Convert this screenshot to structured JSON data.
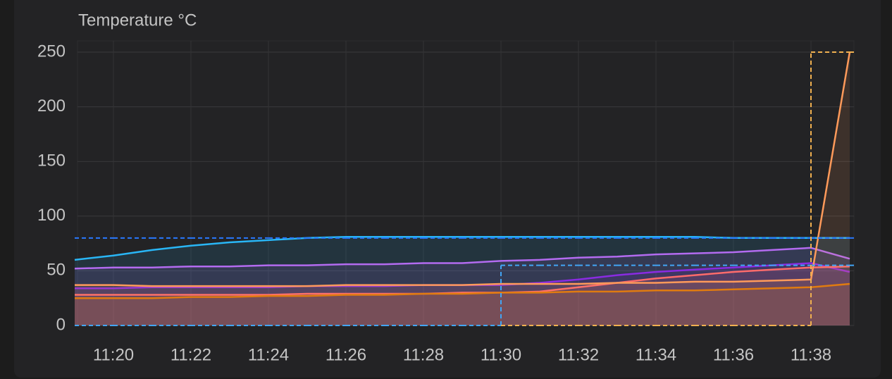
{
  "chart_data": {
    "type": "line",
    "title": "Temperature °C",
    "x": [
      "11:19",
      "11:20",
      "11:21",
      "11:22",
      "11:23",
      "11:24",
      "11:25",
      "11:26",
      "11:27",
      "11:28",
      "11:29",
      "11:30",
      "11:31",
      "11:32",
      "11:33",
      "11:34",
      "11:35",
      "11:36",
      "11:37",
      "11:38",
      "11:39"
    ],
    "xlim": [
      "11:19",
      "11:39"
    ],
    "xticks": [
      "11:20",
      "11:22",
      "11:24",
      "11:26",
      "11:28",
      "11:30",
      "11:32",
      "11:34",
      "11:36",
      "11:38"
    ],
    "ylim": [
      0,
      250
    ],
    "yticks": [
      0,
      50,
      100,
      150,
      200,
      250
    ],
    "grid": true,
    "series": [
      {
        "color": "#29b6f6",
        "fill": true,
        "values": [
          60,
          64,
          69,
          73,
          76,
          78,
          80,
          81,
          81,
          81,
          81,
          81,
          81,
          81,
          81,
          81,
          81,
          80,
          80,
          80,
          80
        ]
      },
      {
        "color": "#b36bf0",
        "fill": true,
        "values": [
          52,
          53,
          53,
          54,
          54,
          55,
          55,
          56,
          56,
          57,
          57,
          59,
          60,
          62,
          63,
          65,
          66,
          67,
          69,
          71,
          61
        ]
      },
      {
        "color": "#8a2be2",
        "fill": true,
        "values": [
          34,
          34,
          35,
          35,
          35,
          35,
          36,
          36,
          36,
          37,
          37,
          37,
          39,
          42,
          46,
          49,
          51,
          53,
          55,
          57,
          49
        ]
      },
      {
        "color": "#ff6b6b",
        "fill": true,
        "values": [
          28,
          28,
          28,
          28,
          28,
          28,
          29,
          29,
          29,
          29,
          30,
          30,
          31,
          35,
          39,
          43,
          46,
          49,
          51,
          53,
          54
        ]
      },
      {
        "color": "#ff9a5a",
        "fill": true,
        "values": [
          37,
          37,
          36,
          36,
          36,
          36,
          36,
          37,
          37,
          37,
          37,
          38,
          38,
          38,
          39,
          39,
          40,
          40,
          41,
          42,
          250
        ]
      },
      {
        "color": "#e07b10",
        "fill": true,
        "values": [
          25,
          25,
          25,
          26,
          26,
          27,
          27,
          28,
          28,
          29,
          29,
          30,
          30,
          31,
          31,
          32,
          32,
          33,
          34,
          35,
          38
        ]
      },
      {
        "color": "#2979ff",
        "step": true,
        "dashed": true,
        "values": [
          80,
          80,
          80,
          80,
          80,
          80,
          80,
          80,
          80,
          80,
          80,
          80,
          80,
          80,
          80,
          80,
          80,
          80,
          80,
          80,
          80
        ]
      },
      {
        "color": "#42a5f5",
        "step": true,
        "dashed": true,
        "values": [
          0,
          0,
          0,
          0,
          0,
          0,
          0,
          0,
          0,
          0,
          0,
          55,
          55,
          55,
          55,
          55,
          55,
          55,
          55,
          55,
          55
        ]
      },
      {
        "color": "#f0b050",
        "step": true,
        "dashed": true,
        "values": [
          null,
          null,
          null,
          null,
          null,
          null,
          null,
          null,
          null,
          null,
          null,
          0,
          0,
          0,
          0,
          0,
          0,
          0,
          0,
          250,
          250
        ]
      }
    ]
  }
}
